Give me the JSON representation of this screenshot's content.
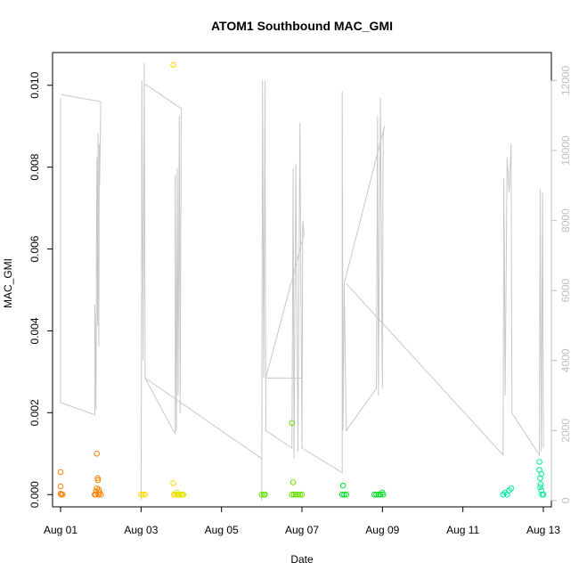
{
  "chart_data": {
    "type": "scatter",
    "title": "ATOM1 Southbound MAC_GMI",
    "xlabel": "Date",
    "ylabel": "MAC_GMI",
    "x_ticks": [
      {
        "day": 1,
        "label": "Aug 01"
      },
      {
        "day": 3,
        "label": "Aug 03"
      },
      {
        "day": 5,
        "label": "Aug 05"
      },
      {
        "day": 7,
        "label": "Aug 07"
      },
      {
        "day": 9,
        "label": "Aug 09"
      },
      {
        "day": 11,
        "label": "Aug 11"
      },
      {
        "day": 13,
        "label": "Aug 13"
      }
    ],
    "xlim": [
      0.8,
      13.2
    ],
    "ylim": [
      -0.0003,
      0.0108
    ],
    "y_ticks": [
      {
        "value": 0.0,
        "label": "0.000"
      },
      {
        "value": 0.002,
        "label": "0.002"
      },
      {
        "value": 0.004,
        "label": "0.004"
      },
      {
        "value": 0.006,
        "label": "0.006"
      },
      {
        "value": 0.008,
        "label": "0.008"
      },
      {
        "value": 0.01,
        "label": "0.010"
      }
    ],
    "y2lim": [
      -180,
      12800
    ],
    "y2_ticks": [
      {
        "value": 0,
        "label": "0"
      },
      {
        "value": 2000,
        "label": "2000"
      },
      {
        "value": 4000,
        "label": "4000"
      },
      {
        "value": 6000,
        "label": "6000"
      },
      {
        "value": 8000,
        "label": "8000"
      },
      {
        "value": 10000,
        "label": "10000"
      },
      {
        "value": 12000,
        "label": "12000"
      }
    ],
    "grid": false,
    "legend": "none",
    "line_color": "#c8c8c8",
    "secondary_axis_color": "#bebebe",
    "point_series": [
      {
        "color": "#ff7f00",
        "points": [
          [
            1.0,
            0.00055
          ],
          [
            1.0,
            0.0002
          ],
          [
            1.0,
            2e-05
          ],
          [
            1.02,
            0.0
          ],
          [
            1.05,
            0.0
          ],
          [
            1.85,
            0.0
          ],
          [
            1.88,
            8e-05
          ],
          [
            1.9,
            0.00015
          ],
          [
            1.92,
            0.0004
          ],
          [
            1.93,
            0.00035
          ],
          [
            1.95,
            0.00012
          ],
          [
            1.9,
            0.001
          ],
          [
            1.97,
            5e-05
          ],
          [
            2.0,
            0.0
          ],
          [
            1.87,
            0.0
          ],
          [
            1.94,
            0.0
          ]
        ]
      },
      {
        "color": "#ffd700",
        "points": [
          [
            3.0,
            0.0
          ],
          [
            3.05,
            0.0
          ],
          [
            3.1,
            0.0
          ],
          [
            3.8,
            0.0105
          ],
          [
            3.8,
            0.00028
          ],
          [
            3.82,
            0.0
          ],
          [
            3.85,
            0.0
          ],
          [
            3.9,
            0.0
          ],
          [
            3.95,
            0.0
          ],
          [
            4.0,
            0.0
          ],
          [
            4.05,
            0.0
          ]
        ]
      },
      {
        "color": "#d4f000",
        "points": [
          [
            4.02,
            0.0
          ],
          [
            3.88,
            5e-05
          ],
          [
            3.93,
            0.0
          ]
        ]
      },
      {
        "color": "#66e000",
        "points": [
          [
            6.0,
            0.0
          ],
          [
            6.05,
            0.0
          ],
          [
            6.08,
            0.0
          ],
          [
            6.75,
            0.0
          ],
          [
            6.8,
            0.0
          ],
          [
            6.85,
            0.0
          ],
          [
            6.9,
            0.0
          ],
          [
            6.95,
            0.0
          ],
          [
            7.0,
            0.0
          ],
          [
            6.75,
            0.00175
          ],
          [
            6.78,
            0.0003
          ]
        ]
      },
      {
        "color": "#00dd22",
        "points": [
          [
            8.0,
            0.0
          ],
          [
            8.02,
            0.00022
          ],
          [
            8.05,
            0.0
          ],
          [
            8.1,
            0.0
          ],
          [
            8.8,
            0.0
          ],
          [
            8.85,
            0.0
          ],
          [
            8.9,
            0.0
          ],
          [
            8.95,
            0.0
          ],
          [
            9.0,
            5e-05
          ],
          [
            9.02,
            0.0
          ]
        ]
      },
      {
        "color": "#00e8a0",
        "points": [
          [
            12.0,
            0.0
          ],
          [
            12.05,
            5e-05
          ],
          [
            12.1,
            0.0
          ],
          [
            12.15,
            0.0001
          ],
          [
            12.2,
            0.00015
          ],
          [
            12.9,
            0.0008
          ],
          [
            12.9,
            0.0006
          ],
          [
            12.92,
            0.0004
          ],
          [
            12.93,
            0.00025
          ],
          [
            12.95,
            0.0001
          ],
          [
            12.97,
            0.0
          ],
          [
            13.0,
            0.0
          ],
          [
            12.95,
            0.0005
          ],
          [
            12.92,
            0.00018
          ]
        ]
      }
    ],
    "line_series": [
      [
        [
          1.0,
          11500
        ],
        [
          1.0,
          7000
        ],
        [
          1.0,
          2800
        ],
        [
          1.85,
          2450
        ],
        [
          1.85,
          3000
        ],
        [
          1.85,
          5600
        ],
        [
          1.87,
          4500
        ],
        [
          1.88,
          2600
        ],
        [
          1.9,
          9800
        ],
        [
          1.92,
          5000
        ],
        [
          1.93,
          10500
        ],
        [
          1.95,
          4400
        ],
        [
          1.96,
          10200
        ],
        [
          1.97,
          9000
        ],
        [
          2.0,
          11400
        ],
        [
          1.0,
          11600
        ]
      ],
      [
        [
          3.0,
          0
        ],
        [
          3.02,
          12000
        ],
        [
          3.05,
          4000
        ],
        [
          3.08,
          12500
        ],
        [
          3.1,
          3500
        ],
        [
          3.85,
          1900
        ],
        [
          3.85,
          9300
        ],
        [
          3.88,
          2000
        ],
        [
          3.9,
          9500
        ],
        [
          3.92,
          3000
        ],
        [
          3.95,
          11000
        ],
        [
          3.97,
          2500
        ],
        [
          4.0,
          11200
        ],
        [
          3.1,
          11900
        ]
      ],
      [
        [
          3.1,
          3500
        ],
        [
          6.0,
          1200
        ]
      ],
      [
        [
          6.0,
          0
        ],
        [
          6.02,
          12000
        ],
        [
          6.05,
          3500
        ],
        [
          6.08,
          12000
        ],
        [
          6.1,
          2000
        ],
        [
          6.75,
          1500
        ],
        [
          6.78,
          9500
        ],
        [
          6.8,
          1200
        ],
        [
          6.85,
          9600
        ],
        [
          6.9,
          1400
        ],
        [
          6.95,
          10800
        ],
        [
          7.0,
          1500
        ],
        [
          7.02,
          8000
        ],
        [
          7.05,
          7600
        ],
        [
          6.1,
          3500
        ],
        [
          7.0,
          3500
        ]
      ],
      [
        [
          7.0,
          1500
        ],
        [
          8.0,
          800
        ],
        [
          8.0,
          11700
        ],
        [
          8.02,
          2000
        ],
        [
          8.05,
          6200
        ],
        [
          8.1,
          2000
        ],
        [
          8.85,
          3200
        ],
        [
          8.88,
          11000
        ],
        [
          8.9,
          3000
        ],
        [
          8.95,
          11500
        ],
        [
          9.0,
          3200
        ],
        [
          9.02,
          10500
        ],
        [
          9.05,
          10700
        ],
        [
          8.05,
          6200
        ]
      ],
      [
        [
          8.1,
          6200
        ],
        [
          12.0,
          1300
        ],
        [
          12.02,
          9200
        ],
        [
          12.05,
          3000
        ],
        [
          12.1,
          9800
        ],
        [
          12.15,
          8800
        ],
        [
          12.2,
          10200
        ],
        [
          12.22,
          2500
        ],
        [
          12.9,
          1300
        ],
        [
          12.92,
          8900
        ],
        [
          12.95,
          1400
        ],
        [
          12.98,
          8800
        ],
        [
          13.0,
          1500
        ]
      ]
    ]
  }
}
